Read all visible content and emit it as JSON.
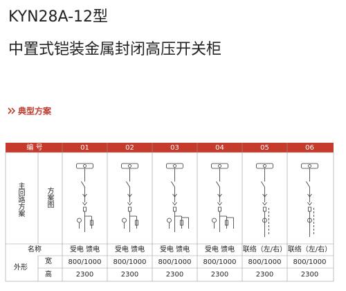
{
  "header": {
    "model": "KYN28A-12型",
    "title": "中置式铠装金属封闭高压开关柜"
  },
  "section": {
    "title": "典型方案"
  },
  "table": {
    "number_label": "编 号",
    "numbers": [
      "01",
      "02",
      "03",
      "04",
      "05",
      "06"
    ],
    "scheme_label": "主回路方案",
    "diagram_label": "方案图",
    "name_label": "名称",
    "names": [
      "受电 馈电",
      "受电 馈电",
      "受电 馈电",
      "受电 馈电",
      "联络（左/右）",
      "联络（左/右）"
    ],
    "shape_label": "外形",
    "width_label": "宽",
    "widths": [
      "800/1000",
      "800/1000",
      "800/1000",
      "800/1000",
      "800/1000",
      "800/1000"
    ],
    "height_label": "高",
    "heights": [
      "2300",
      "2300",
      "2300",
      "2300",
      "2300",
      "2300"
    ]
  }
}
